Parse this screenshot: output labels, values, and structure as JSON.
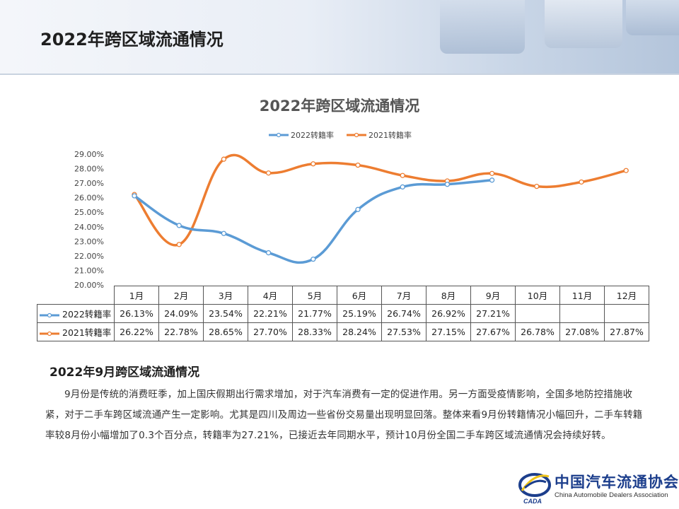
{
  "header": {
    "title": "2022年跨区域流通情况"
  },
  "chart_data": {
    "type": "line",
    "title": "2022年跨区域流通情况",
    "categories": [
      "1月",
      "2月",
      "3月",
      "4月",
      "5月",
      "6月",
      "7月",
      "8月",
      "9月",
      "10月",
      "11月",
      "12月"
    ],
    "series": [
      {
        "name": "2022转籍率",
        "color": "#5b9bd5",
        "values": [
          26.13,
          24.09,
          23.54,
          22.21,
          21.77,
          25.19,
          26.74,
          26.92,
          27.21,
          null,
          null,
          null
        ],
        "labels": [
          "26.13%",
          "24.09%",
          "23.54%",
          "22.21%",
          "21.77%",
          "25.19%",
          "26.74%",
          "26.92%",
          "27.21%",
          "",
          "",
          ""
        ]
      },
      {
        "name": "2021转籍率",
        "color": "#ed7d31",
        "values": [
          26.22,
          22.78,
          28.65,
          27.7,
          28.33,
          28.24,
          27.53,
          27.15,
          27.67,
          26.78,
          27.08,
          27.87
        ],
        "labels": [
          "26.22%",
          "22.78%",
          "28.65%",
          "27.70%",
          "28.33%",
          "28.24%",
          "27.53%",
          "27.15%",
          "27.67%",
          "26.78%",
          "27.08%",
          "27.87%"
        ]
      }
    ],
    "ylim": [
      20,
      29
    ],
    "yticks": [
      "20.00%",
      "21.00%",
      "22.00%",
      "23.00%",
      "24.00%",
      "25.00%",
      "26.00%",
      "27.00%",
      "28.00%",
      "29.00%"
    ],
    "legend_position": "top",
    "grid": false,
    "data_table": true
  },
  "section": {
    "title": "2022年9月跨区域流通情况",
    "paragraph": "9月份是传统的消费旺季，加上国庆假期出行需求增加，对于汽车消费有一定的促进作用。另一方面受疫情影响，全国多地防控措施收紧，对于二手车跨区域流通产生一定影响。尤其是四川及周边一些省份交易量出现明显回落。整体来看9月份转籍情况小幅回升，二手车转籍率较8月份小幅增加了0.3个百分点，转籍率为27.21%，已接近去年同期水平，预计10月份全国二手车跨区域流通情况会持续好转。"
  },
  "logo": {
    "name_cn": "中国汽车流通协会",
    "name_en": "China Automobile Dealers Association",
    "mark_text": "CADA"
  }
}
